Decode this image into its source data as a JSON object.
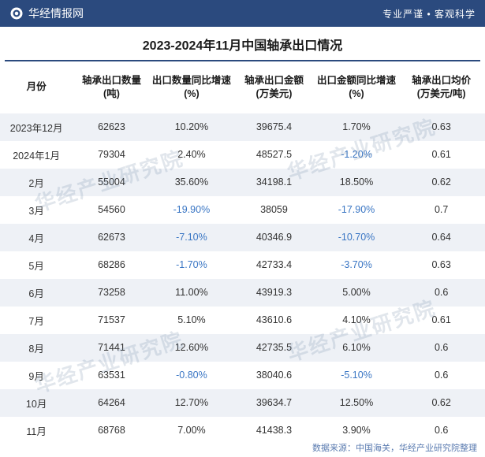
{
  "header": {
    "site_name": "华经情报网",
    "tagline": "专业严谨  •  客观科学"
  },
  "title": "2023-2024年11月中国轴承出口情况",
  "table": {
    "columns": [
      {
        "label": "月份",
        "width": "15%"
      },
      {
        "label": "轴承出口数量\n(吨)",
        "width": "16%"
      },
      {
        "label": "出口数量同比增速\n(%)",
        "width": "17%"
      },
      {
        "label": "轴承出口金额\n(万美元)",
        "width": "17%"
      },
      {
        "label": "出口金额同比增速\n(%)",
        "width": "17%"
      },
      {
        "label": "轴承出口均价\n(万美元/吨)",
        "width": "18%"
      }
    ],
    "rows": [
      {
        "month": "2023年12月",
        "qty": "62623",
        "qty_yoy": "10.20%",
        "qty_neg": false,
        "amt": "39675.4",
        "amt_yoy": "1.70%",
        "amt_neg": false,
        "avg": "0.63"
      },
      {
        "month": "2024年1月",
        "qty": "79304",
        "qty_yoy": "2.40%",
        "qty_neg": false,
        "amt": "48527.5",
        "amt_yoy": "-1.20%",
        "amt_neg": true,
        "avg": "0.61"
      },
      {
        "month": "2月",
        "qty": "55004",
        "qty_yoy": "35.60%",
        "qty_neg": false,
        "amt": "34198.1",
        "amt_yoy": "18.50%",
        "amt_neg": false,
        "avg": "0.62"
      },
      {
        "month": "3月",
        "qty": "54560",
        "qty_yoy": "-19.90%",
        "qty_neg": true,
        "amt": "38059",
        "amt_yoy": "-17.90%",
        "amt_neg": true,
        "avg": "0.7"
      },
      {
        "month": "4月",
        "qty": "62673",
        "qty_yoy": "-7.10%",
        "qty_neg": true,
        "amt": "40346.9",
        "amt_yoy": "-10.70%",
        "amt_neg": true,
        "avg": "0.64"
      },
      {
        "month": "5月",
        "qty": "68286",
        "qty_yoy": "-1.70%",
        "qty_neg": true,
        "amt": "42733.4",
        "amt_yoy": "-3.70%",
        "amt_neg": true,
        "avg": "0.63"
      },
      {
        "month": "6月",
        "qty": "73258",
        "qty_yoy": "11.00%",
        "qty_neg": false,
        "amt": "43919.3",
        "amt_yoy": "5.00%",
        "amt_neg": false,
        "avg": "0.6"
      },
      {
        "month": "7月",
        "qty": "71537",
        "qty_yoy": "5.10%",
        "qty_neg": false,
        "amt": "43610.6",
        "amt_yoy": "4.10%",
        "amt_neg": false,
        "avg": "0.61"
      },
      {
        "month": "8月",
        "qty": "71441",
        "qty_yoy": "12.60%",
        "qty_neg": false,
        "amt": "42735.5",
        "amt_yoy": "6.10%",
        "amt_neg": false,
        "avg": "0.6"
      },
      {
        "month": "9月",
        "qty": "63531",
        "qty_yoy": "-0.80%",
        "qty_neg": true,
        "amt": "38040.6",
        "amt_yoy": "-5.10%",
        "amt_neg": true,
        "avg": "0.6"
      },
      {
        "month": "10月",
        "qty": "64264",
        "qty_yoy": "12.70%",
        "qty_neg": false,
        "amt": "39634.7",
        "amt_yoy": "12.50%",
        "amt_neg": false,
        "avg": "0.62"
      },
      {
        "month": "11月",
        "qty": "68768",
        "qty_yoy": "7.00%",
        "qty_neg": false,
        "amt": "41438.3",
        "amt_yoy": "3.90%",
        "amt_neg": false,
        "avg": "0.6"
      }
    ]
  },
  "footer": "数据来源：中国海关，华经产业研究院整理",
  "watermark_text": "华经产业研究院",
  "colors": {
    "header_bg": "#2b4a7e",
    "alt_row_bg": "#eef1f6",
    "negative_text": "#3a76c4",
    "border": "#2b4a7e"
  }
}
